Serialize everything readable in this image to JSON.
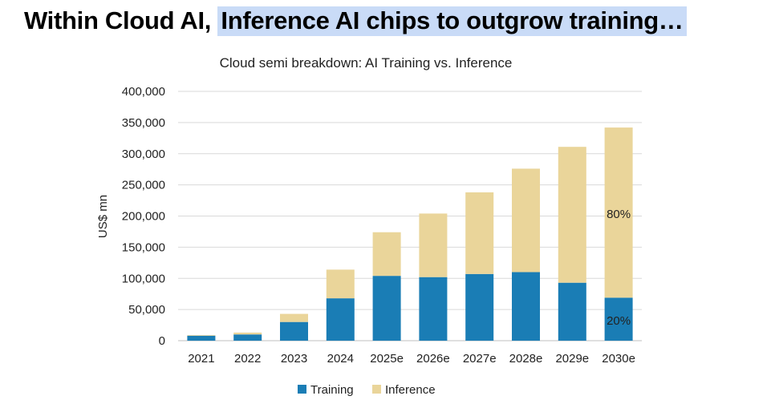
{
  "headline": {
    "prefix": "Within Cloud AI, ",
    "highlight": "Inference AI chips to outgrow training…"
  },
  "chart_data": {
    "type": "bar",
    "stacked": true,
    "title": "Cloud semi breakdown: AI Training vs. Inference",
    "xlabel": "",
    "ylabel": "US$ mn",
    "ylim": [
      0,
      400000
    ],
    "yticks": [
      0,
      50000,
      100000,
      150000,
      200000,
      250000,
      300000,
      350000,
      400000
    ],
    "ytick_labels": [
      "0",
      "50,000",
      "100,000",
      "150,000",
      "200,000",
      "250,000",
      "300,000",
      "350,000",
      "400,000"
    ],
    "grid": true,
    "legend_position": "bottom",
    "categories": [
      "2021",
      "2022",
      "2023",
      "2024",
      "2025e",
      "2026e",
      "2027e",
      "2028e",
      "2029e",
      "2030e"
    ],
    "series": [
      {
        "name": "Training",
        "color": "#1a7db5",
        "values": [
          8000,
          10000,
          30000,
          68000,
          104000,
          102000,
          107000,
          110000,
          93000,
          69000
        ]
      },
      {
        "name": "Inference",
        "color": "#ead59a",
        "values": [
          1000,
          3000,
          13000,
          46000,
          70000,
          102000,
          131000,
          166000,
          218000,
          273000
        ]
      }
    ],
    "annotations": [
      {
        "text": "80%",
        "category": "2030e",
        "y": 203000
      },
      {
        "text": "20%",
        "category": "2030e",
        "y": 32000
      }
    ]
  }
}
